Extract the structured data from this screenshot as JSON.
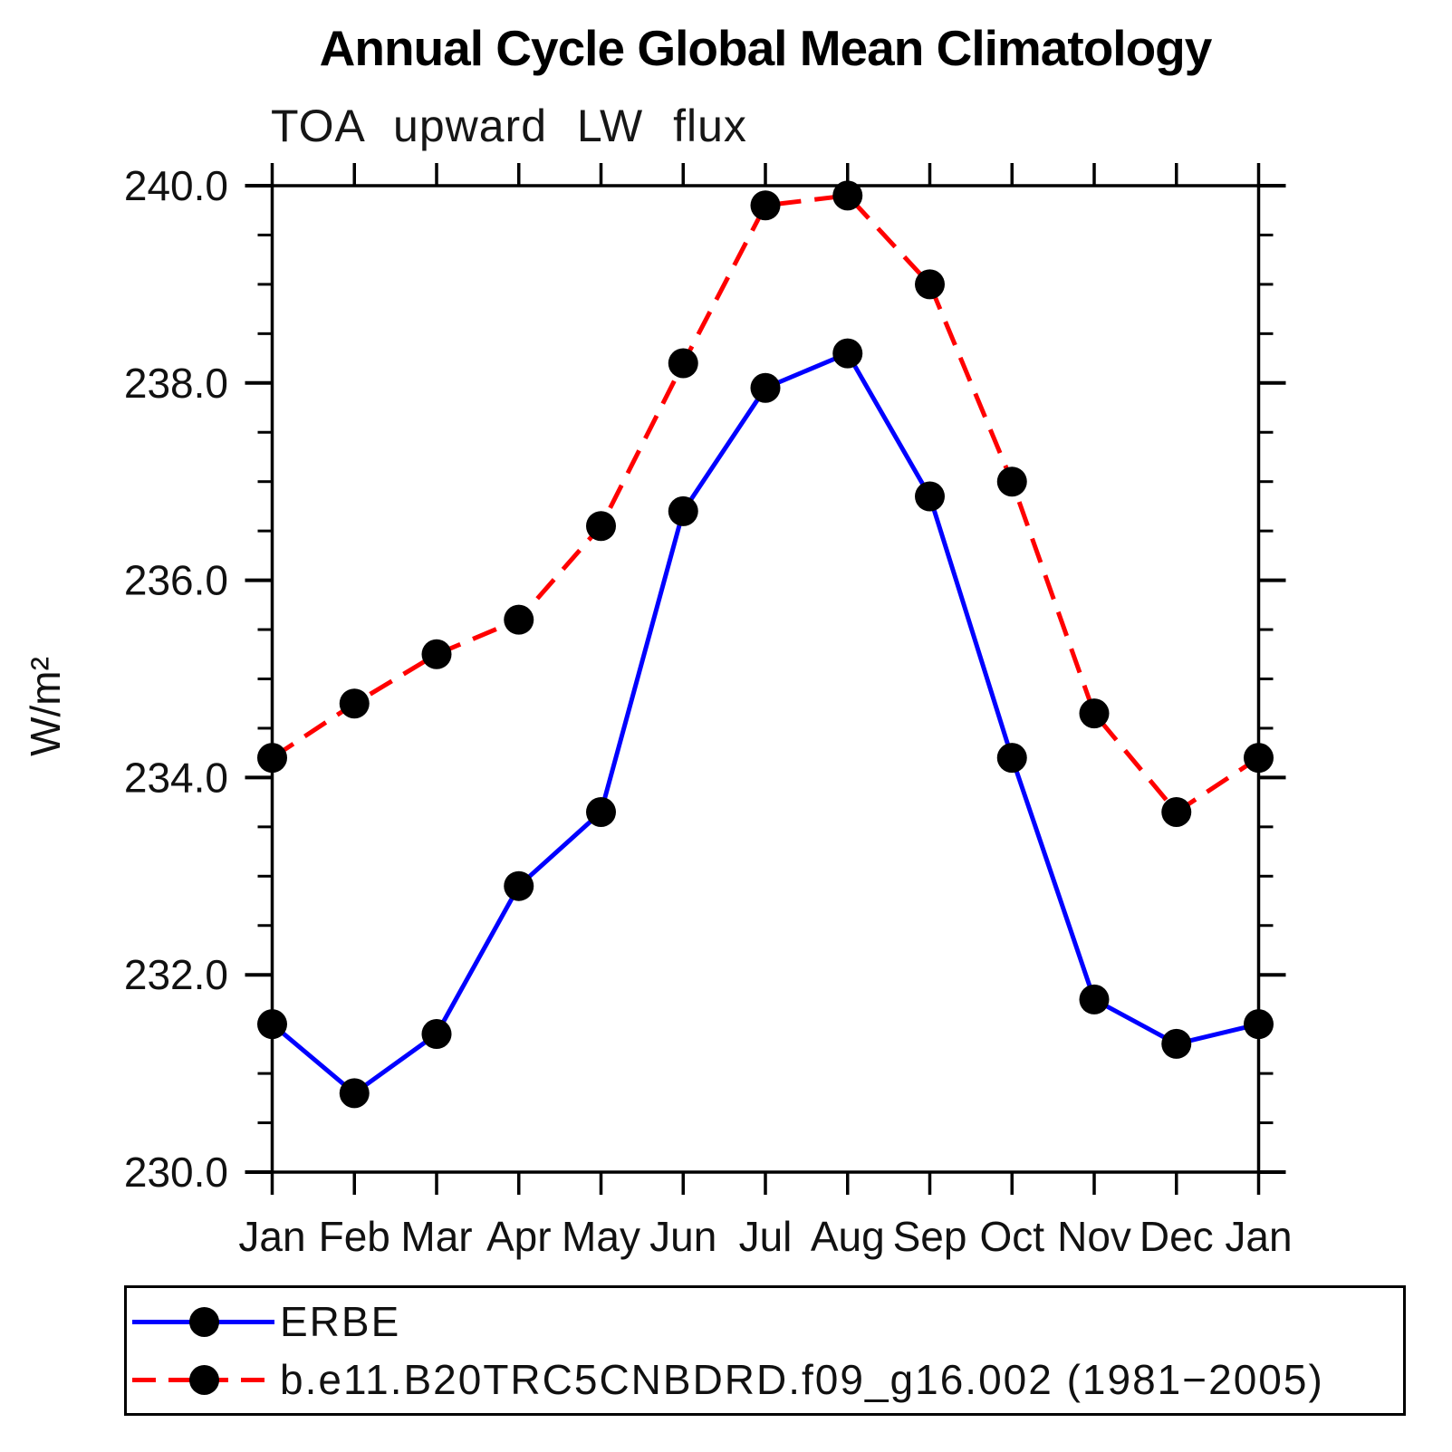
{
  "page": {
    "background": "#ffffff",
    "text_color": "#000000"
  },
  "chart_data": {
    "type": "line",
    "title": "Annual Cycle Global Mean Climatology",
    "subtitle": "TOA upward LW flux",
    "ylabel": "W/m²",
    "xlabel": "",
    "categories": [
      "Jan",
      "Feb",
      "Mar",
      "Apr",
      "May",
      "Jun",
      "Jul",
      "Aug",
      "Sep",
      "Oct",
      "Nov",
      "Dec",
      "Jan"
    ],
    "ylim": [
      230.0,
      240.0
    ],
    "y_tick_labels": [
      "230.0",
      "232.0",
      "234.0",
      "236.0",
      "238.0",
      "240.0"
    ],
    "y_major_interval": 2.0,
    "y_minor_interval": 0.5,
    "grid": false,
    "legend_position": "bottom-left",
    "frame_color": "#000000",
    "series": [
      {
        "name": "ERBE",
        "color": "#0000ff",
        "line_style": "solid",
        "marker": "circle",
        "marker_color": "#000000",
        "values": [
          231.5,
          230.8,
          231.4,
          232.9,
          233.65,
          236.7,
          237.95,
          238.3,
          236.85,
          234.2,
          231.75,
          231.3,
          231.5
        ]
      },
      {
        "name": "b.e11.B20TRC5CNBDRD.f09_g16.002 (1981−2005)",
        "color": "#ff0000",
        "line_style": "dashed",
        "marker": "circle",
        "marker_color": "#000000",
        "values": [
          234.2,
          234.75,
          235.25,
          235.6,
          236.55,
          238.2,
          239.8,
          239.9,
          239.0,
          237.0,
          234.65,
          233.65,
          234.2
        ]
      }
    ]
  }
}
